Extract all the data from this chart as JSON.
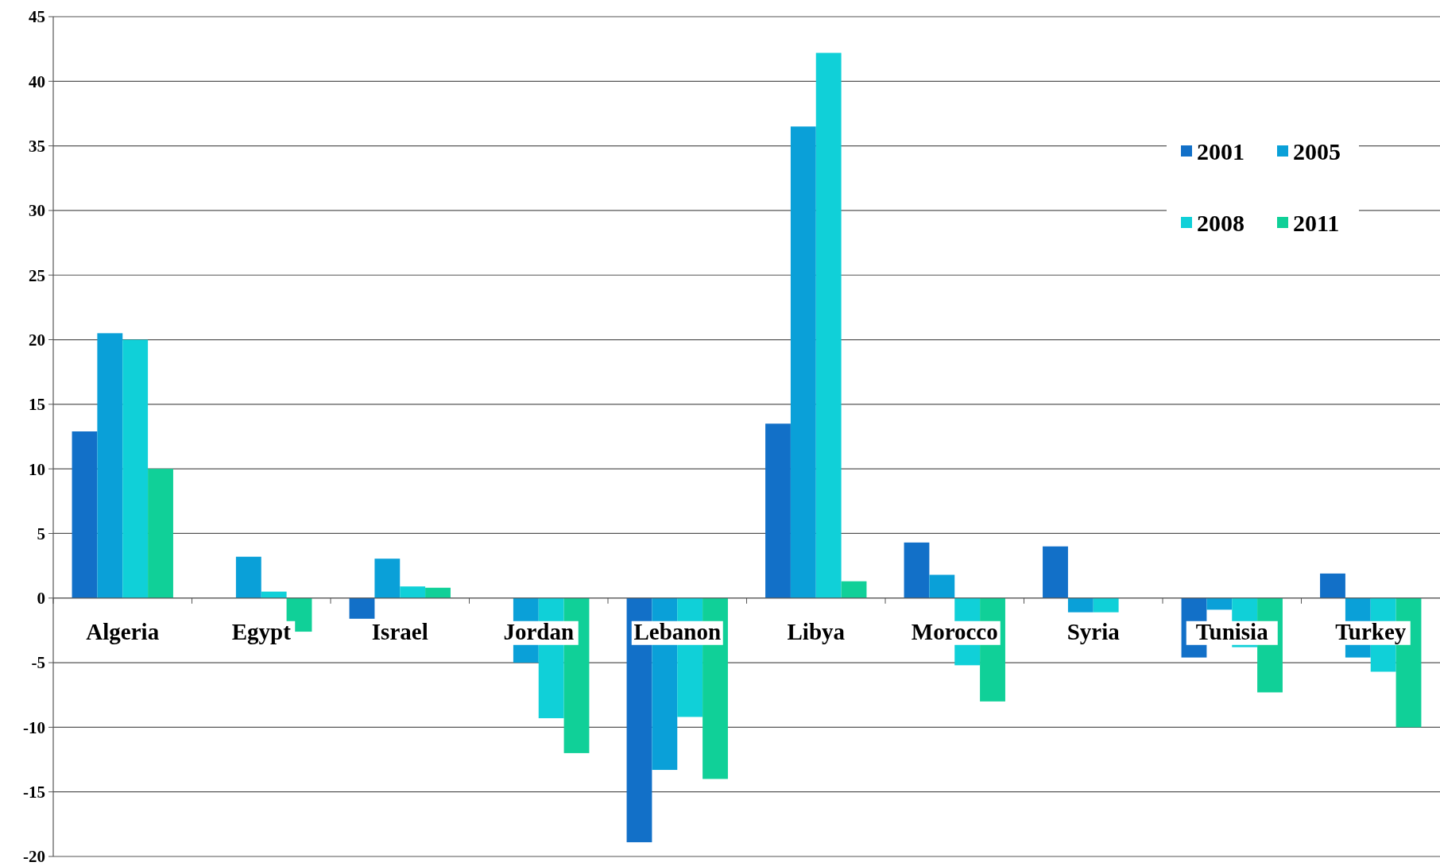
{
  "chart_data": {
    "type": "bar",
    "categories": [
      "Algeria",
      "Egypt",
      "Israel",
      "Jordan",
      "Lebanon",
      "Libya",
      "Morocco",
      "Syria",
      "Tunisia",
      "Turkey"
    ],
    "series": [
      {
        "name": "2001",
        "color": "#1270c8",
        "values": [
          12.9,
          null,
          -1.6,
          null,
          -18.9,
          13.5,
          4.3,
          4.0,
          -4.6,
          1.9
        ]
      },
      {
        "name": "2005",
        "color": "#0aa0d8",
        "values": [
          20.5,
          3.2,
          3.05,
          -5.0,
          -13.3,
          36.5,
          1.8,
          -1.1,
          -0.9,
          -4.6
        ]
      },
      {
        "name": "2008",
        "color": "#10d0d8",
        "values": [
          20.0,
          0.5,
          0.9,
          -9.3,
          -9.2,
          42.2,
          -5.2,
          -1.1,
          -3.8,
          -5.7
        ]
      },
      {
        "name": "2011",
        "color": "#10d098",
        "values": [
          10.0,
          -2.6,
          0.8,
          -12.0,
          -14.0,
          1.3,
          -8.0,
          null,
          -7.3,
          -10.0
        ]
      }
    ],
    "ylim": [
      -20,
      45
    ],
    "yticks": [
      -20,
      -15,
      -10,
      -5,
      0,
      5,
      10,
      15,
      20,
      25,
      30,
      35,
      40,
      45
    ],
    "grid": "y",
    "legend": "top right"
  }
}
